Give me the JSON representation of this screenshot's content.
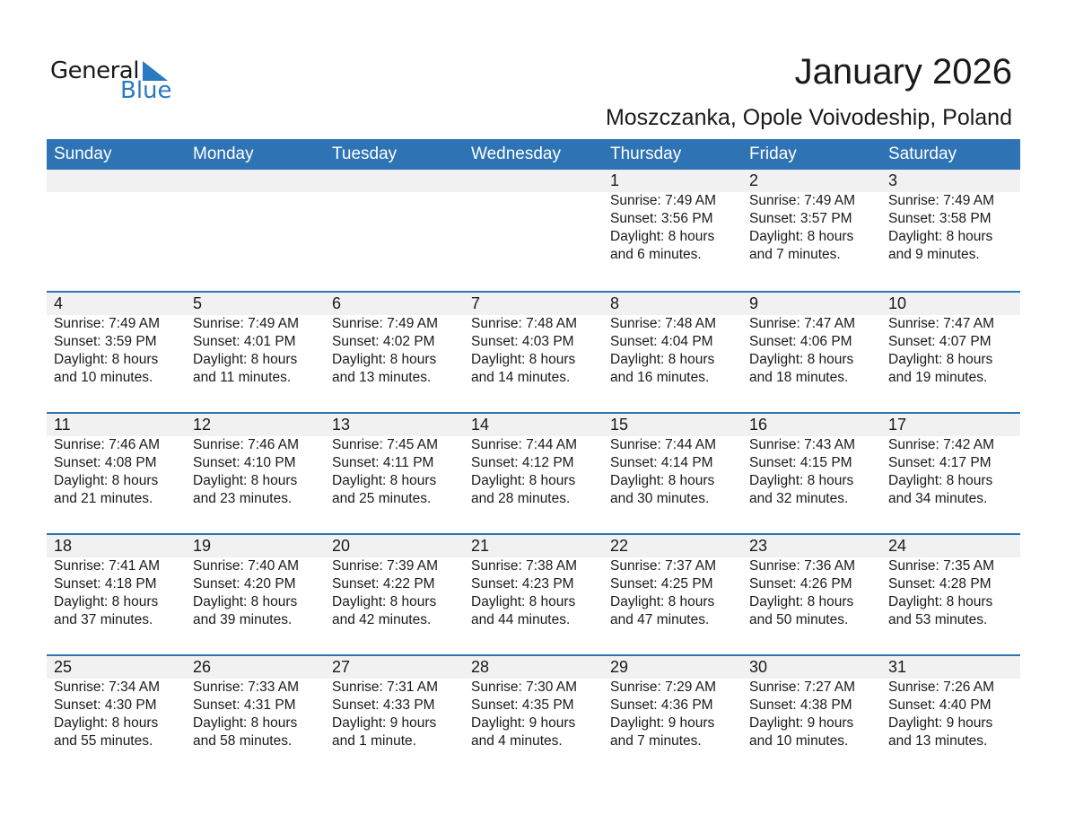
{
  "logo": {
    "line1": "General",
    "line2": "Blue",
    "color": "#2a7ac0"
  },
  "title": "January 2026",
  "subtitle": "Moszczanka, Opole Voivodeship, Poland",
  "weekdays": [
    "Sunday",
    "Monday",
    "Tuesday",
    "Wednesday",
    "Thursday",
    "Friday",
    "Saturday"
  ],
  "colors": {
    "header": "#2e73b4",
    "band": "#f1f1f1"
  },
  "weeks": [
    [
      null,
      null,
      null,
      null,
      {
        "day": "1",
        "sunrise": "Sunrise: 7:49 AM",
        "sunset": "Sunset: 3:56 PM",
        "daylight1": "Daylight: 8 hours",
        "daylight2": "and 6 minutes."
      },
      {
        "day": "2",
        "sunrise": "Sunrise: 7:49 AM",
        "sunset": "Sunset: 3:57 PM",
        "daylight1": "Daylight: 8 hours",
        "daylight2": "and 7 minutes."
      },
      {
        "day": "3",
        "sunrise": "Sunrise: 7:49 AM",
        "sunset": "Sunset: 3:58 PM",
        "daylight1": "Daylight: 8 hours",
        "daylight2": "and 9 minutes."
      }
    ],
    [
      {
        "day": "4",
        "sunrise": "Sunrise: 7:49 AM",
        "sunset": "Sunset: 3:59 PM",
        "daylight1": "Daylight: 8 hours",
        "daylight2": "and 10 minutes."
      },
      {
        "day": "5",
        "sunrise": "Sunrise: 7:49 AM",
        "sunset": "Sunset: 4:01 PM",
        "daylight1": "Daylight: 8 hours",
        "daylight2": "and 11 minutes."
      },
      {
        "day": "6",
        "sunrise": "Sunrise: 7:49 AM",
        "sunset": "Sunset: 4:02 PM",
        "daylight1": "Daylight: 8 hours",
        "daylight2": "and 13 minutes."
      },
      {
        "day": "7",
        "sunrise": "Sunrise: 7:48 AM",
        "sunset": "Sunset: 4:03 PM",
        "daylight1": "Daylight: 8 hours",
        "daylight2": "and 14 minutes."
      },
      {
        "day": "8",
        "sunrise": "Sunrise: 7:48 AM",
        "sunset": "Sunset: 4:04 PM",
        "daylight1": "Daylight: 8 hours",
        "daylight2": "and 16 minutes."
      },
      {
        "day": "9",
        "sunrise": "Sunrise: 7:47 AM",
        "sunset": "Sunset: 4:06 PM",
        "daylight1": "Daylight: 8 hours",
        "daylight2": "and 18 minutes."
      },
      {
        "day": "10",
        "sunrise": "Sunrise: 7:47 AM",
        "sunset": "Sunset: 4:07 PM",
        "daylight1": "Daylight: 8 hours",
        "daylight2": "and 19 minutes."
      }
    ],
    [
      {
        "day": "11",
        "sunrise": "Sunrise: 7:46 AM",
        "sunset": "Sunset: 4:08 PM",
        "daylight1": "Daylight: 8 hours",
        "daylight2": "and 21 minutes."
      },
      {
        "day": "12",
        "sunrise": "Sunrise: 7:46 AM",
        "sunset": "Sunset: 4:10 PM",
        "daylight1": "Daylight: 8 hours",
        "daylight2": "and 23 minutes."
      },
      {
        "day": "13",
        "sunrise": "Sunrise: 7:45 AM",
        "sunset": "Sunset: 4:11 PM",
        "daylight1": "Daylight: 8 hours",
        "daylight2": "and 25 minutes."
      },
      {
        "day": "14",
        "sunrise": "Sunrise: 7:44 AM",
        "sunset": "Sunset: 4:12 PM",
        "daylight1": "Daylight: 8 hours",
        "daylight2": "and 28 minutes."
      },
      {
        "day": "15",
        "sunrise": "Sunrise: 7:44 AM",
        "sunset": "Sunset: 4:14 PM",
        "daylight1": "Daylight: 8 hours",
        "daylight2": "and 30 minutes."
      },
      {
        "day": "16",
        "sunrise": "Sunrise: 7:43 AM",
        "sunset": "Sunset: 4:15 PM",
        "daylight1": "Daylight: 8 hours",
        "daylight2": "and 32 minutes."
      },
      {
        "day": "17",
        "sunrise": "Sunrise: 7:42 AM",
        "sunset": "Sunset: 4:17 PM",
        "daylight1": "Daylight: 8 hours",
        "daylight2": "and 34 minutes."
      }
    ],
    [
      {
        "day": "18",
        "sunrise": "Sunrise: 7:41 AM",
        "sunset": "Sunset: 4:18 PM",
        "daylight1": "Daylight: 8 hours",
        "daylight2": "and 37 minutes."
      },
      {
        "day": "19",
        "sunrise": "Sunrise: 7:40 AM",
        "sunset": "Sunset: 4:20 PM",
        "daylight1": "Daylight: 8 hours",
        "daylight2": "and 39 minutes."
      },
      {
        "day": "20",
        "sunrise": "Sunrise: 7:39 AM",
        "sunset": "Sunset: 4:22 PM",
        "daylight1": "Daylight: 8 hours",
        "daylight2": "and 42 minutes."
      },
      {
        "day": "21",
        "sunrise": "Sunrise: 7:38 AM",
        "sunset": "Sunset: 4:23 PM",
        "daylight1": "Daylight: 8 hours",
        "daylight2": "and 44 minutes."
      },
      {
        "day": "22",
        "sunrise": "Sunrise: 7:37 AM",
        "sunset": "Sunset: 4:25 PM",
        "daylight1": "Daylight: 8 hours",
        "daylight2": "and 47 minutes."
      },
      {
        "day": "23",
        "sunrise": "Sunrise: 7:36 AM",
        "sunset": "Sunset: 4:26 PM",
        "daylight1": "Daylight: 8 hours",
        "daylight2": "and 50 minutes."
      },
      {
        "day": "24",
        "sunrise": "Sunrise: 7:35 AM",
        "sunset": "Sunset: 4:28 PM",
        "daylight1": "Daylight: 8 hours",
        "daylight2": "and 53 minutes."
      }
    ],
    [
      {
        "day": "25",
        "sunrise": "Sunrise: 7:34 AM",
        "sunset": "Sunset: 4:30 PM",
        "daylight1": "Daylight: 8 hours",
        "daylight2": "and 55 minutes."
      },
      {
        "day": "26",
        "sunrise": "Sunrise: 7:33 AM",
        "sunset": "Sunset: 4:31 PM",
        "daylight1": "Daylight: 8 hours",
        "daylight2": "and 58 minutes."
      },
      {
        "day": "27",
        "sunrise": "Sunrise: 7:31 AM",
        "sunset": "Sunset: 4:33 PM",
        "daylight1": "Daylight: 9 hours",
        "daylight2": "and 1 minute."
      },
      {
        "day": "28",
        "sunrise": "Sunrise: 7:30 AM",
        "sunset": "Sunset: 4:35 PM",
        "daylight1": "Daylight: 9 hours",
        "daylight2": "and 4 minutes."
      },
      {
        "day": "29",
        "sunrise": "Sunrise: 7:29 AM",
        "sunset": "Sunset: 4:36 PM",
        "daylight1": "Daylight: 9 hours",
        "daylight2": "and 7 minutes."
      },
      {
        "day": "30",
        "sunrise": "Sunrise: 7:27 AM",
        "sunset": "Sunset: 4:38 PM",
        "daylight1": "Daylight: 9 hours",
        "daylight2": "and 10 minutes."
      },
      {
        "day": "31",
        "sunrise": "Sunrise: 7:26 AM",
        "sunset": "Sunset: 4:40 PM",
        "daylight1": "Daylight: 9 hours",
        "daylight2": "and 13 minutes."
      }
    ]
  ]
}
